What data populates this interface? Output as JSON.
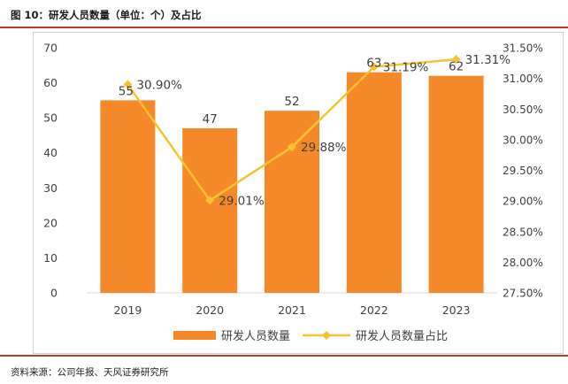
{
  "figure": {
    "title": "图 10：研发人员数量（单位：个）及占比",
    "source": "资料来源：公司年报、天风证券研究所"
  },
  "colors": {
    "bar": "#f5892a",
    "line": "#f7c32e",
    "axis": "#d9d9d9",
    "text": "#404040",
    "rule": "#c0392b"
  },
  "chart_data": {
    "type": "bar",
    "categories": [
      "2019",
      "2020",
      "2021",
      "2022",
      "2023"
    ],
    "series": [
      {
        "name": "研发人员数量",
        "type": "bar",
        "axis": "left",
        "values": [
          55,
          47,
          52,
          63,
          62
        ],
        "labels": [
          "55",
          "47",
          "52",
          "63",
          "62"
        ]
      },
      {
        "name": "研发人员数量占比",
        "type": "line",
        "axis": "right",
        "values": [
          30.9,
          29.01,
          29.88,
          31.19,
          31.31
        ],
        "labels": [
          "30.90%",
          "29.01%",
          "29.88%",
          "31.19%",
          "31.31%"
        ]
      }
    ],
    "y_left": {
      "ylim": [
        0,
        70
      ],
      "ticks": [
        "0",
        "10",
        "20",
        "30",
        "40",
        "50",
        "60",
        "70"
      ]
    },
    "y_right": {
      "ylim": [
        27.5,
        31.5
      ],
      "ticks": [
        "27.50%",
        "28.00%",
        "28.50%",
        "29.00%",
        "29.50%",
        "30.00%",
        "30.50%",
        "31.00%",
        "31.50%"
      ]
    },
    "grid": false,
    "legend": "bottom"
  }
}
